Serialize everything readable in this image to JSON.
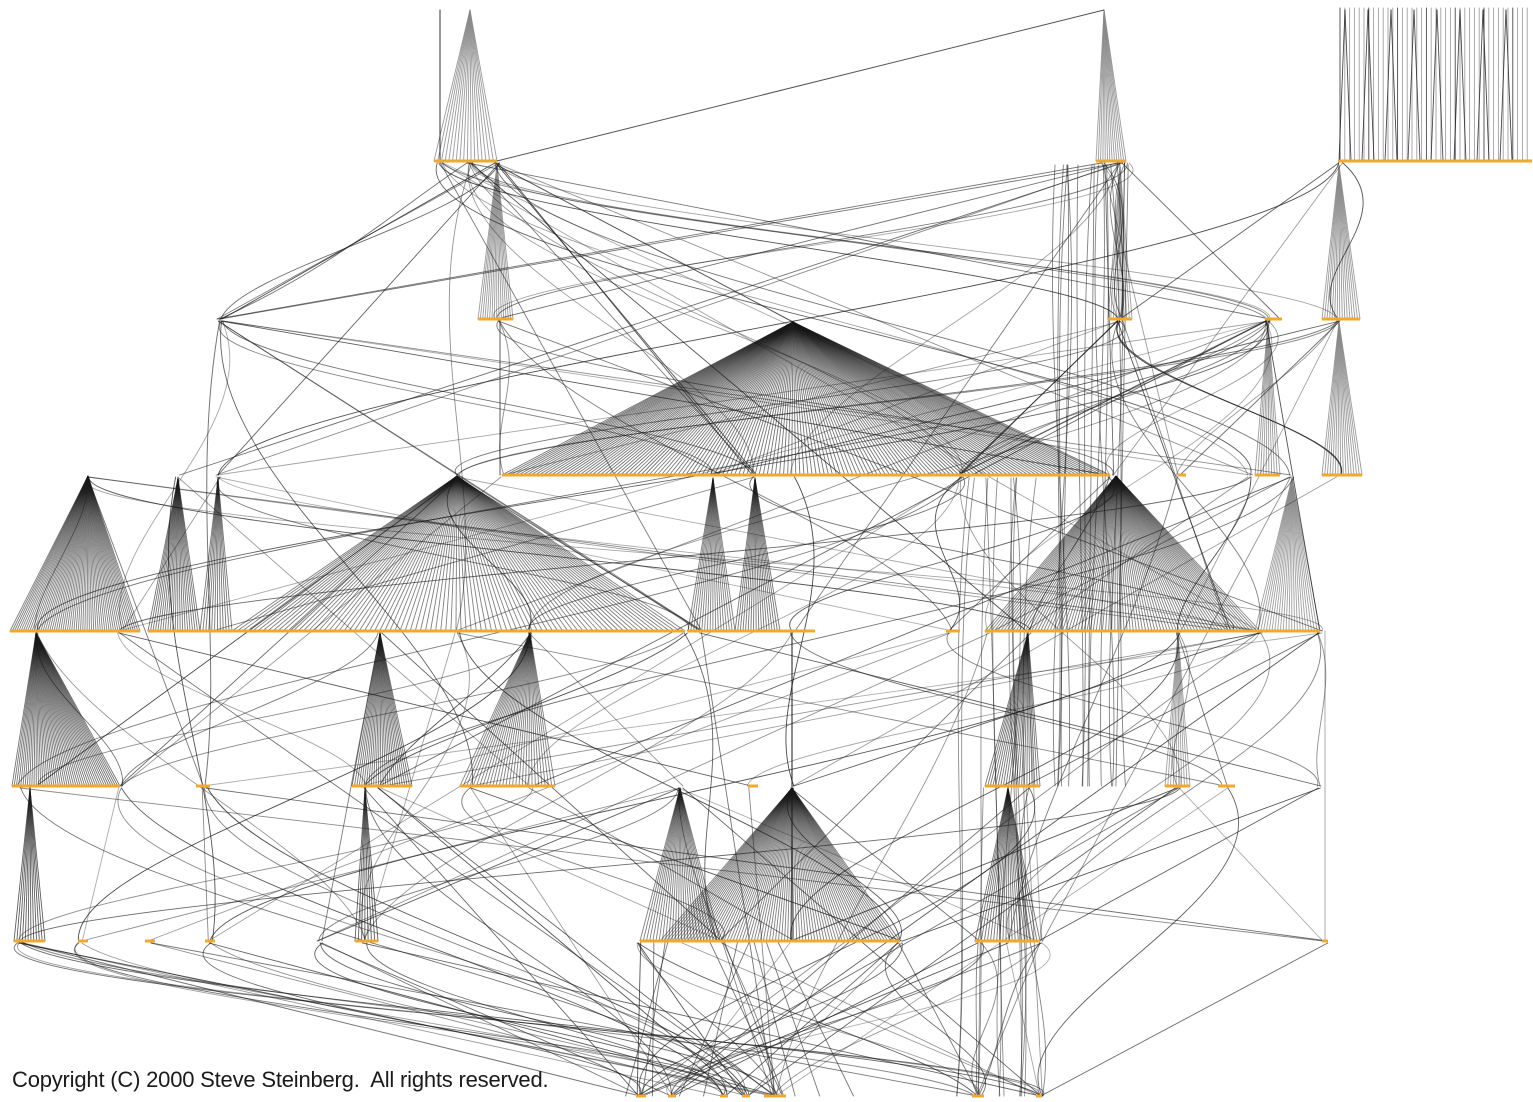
{
  "diagram": {
    "kind": "hierarchical call graph",
    "levels": 8,
    "colors": {
      "node": "#f0a830",
      "edge_dark": "#1a1a1a",
      "edge_fan": "#8a8a8a",
      "background": "#ffffff"
    }
  },
  "footer": {
    "copyright": "Copyright (C) 2000 Steve Steinberg.  All rights reserved."
  }
}
